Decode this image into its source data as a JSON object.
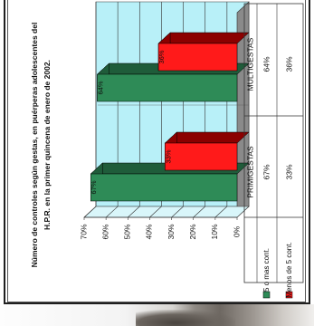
{
  "chart_data": {
    "type": "bar",
    "title": "Número de controles según gestas, en puérperas adolescentes del H.P.R. en la primer quincena de enero de 2002.",
    "categories": [
      "PRIMIGESTAS",
      "MULTIGESTAS"
    ],
    "series": [
      {
        "name": "5 o mas cont.",
        "values": [
          67,
          64
        ],
        "labels": [
          "67%",
          "64%"
        ],
        "color": "#2e8b57"
      },
      {
        "name": "Menos de 5 cont.",
        "values": [
          33,
          36
        ],
        "labels": [
          "33%",
          "36%"
        ],
        "color": "#ff1a1a"
      }
    ],
    "value_axis": {
      "min": 0,
      "max": 70,
      "step": 10,
      "ticks": [
        "0%",
        "10%",
        "20%",
        "30%",
        "40%",
        "50%",
        "60%",
        "70%"
      ]
    },
    "grid": true,
    "orientation": "rotated 90 degrees counter-clockwise",
    "legend": "bottom-left, with data table",
    "colors": {
      "wall": "#b8f0f8",
      "floor": "#8a8a8a",
      "green_side": "#1f5c3a",
      "red_side": "#8b0000"
    }
  }
}
